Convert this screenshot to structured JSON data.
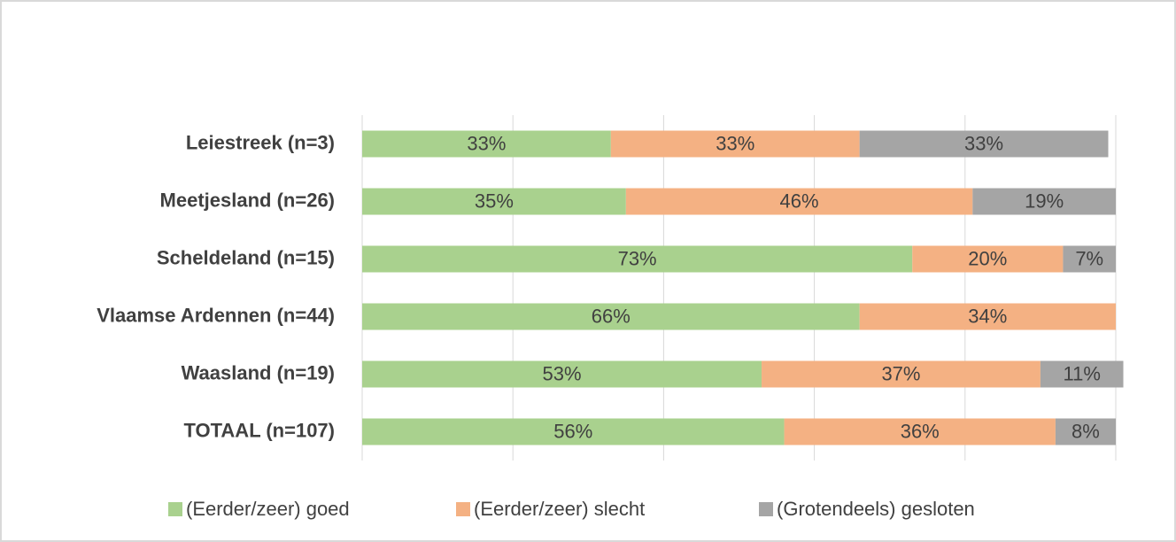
{
  "chart_data": {
    "type": "bar",
    "orientation": "horizontal",
    "stacked": true,
    "categories": [
      "Leiestreek (n=3)",
      "Meetjesland (n=26)",
      "Scheldeland (n=15)",
      "Vlaamse Ardennen (n=44)",
      "Waasland (n=19)",
      "TOTAAL (n=107)"
    ],
    "series": [
      {
        "name": "(Eerder/zeer) goed",
        "color": "#a9d18e",
        "values": [
          33,
          35,
          73,
          66,
          53,
          56
        ],
        "value_labels": [
          "33%",
          "35%",
          "73%",
          "66%",
          "53%",
          "56%"
        ]
      },
      {
        "name": "(Eerder/zeer) slecht",
        "color": "#f4b183",
        "values": [
          33,
          46,
          20,
          34,
          37,
          36
        ],
        "value_labels": [
          "33%",
          "46%",
          "20%",
          "34%",
          "37%",
          "36%"
        ]
      },
      {
        "name": "(Grotendeels) gesloten",
        "color": "#a5a5a5",
        "values": [
          33,
          19,
          7,
          null,
          11,
          8
        ],
        "value_labels": [
          "33%",
          "19%",
          "7%",
          null,
          "11%",
          "8%"
        ]
      }
    ],
    "xlim": [
      0,
      100
    ],
    "xticks": [
      0,
      20,
      40,
      60,
      80,
      100
    ],
    "grid": true,
    "legend": "bottom"
  }
}
